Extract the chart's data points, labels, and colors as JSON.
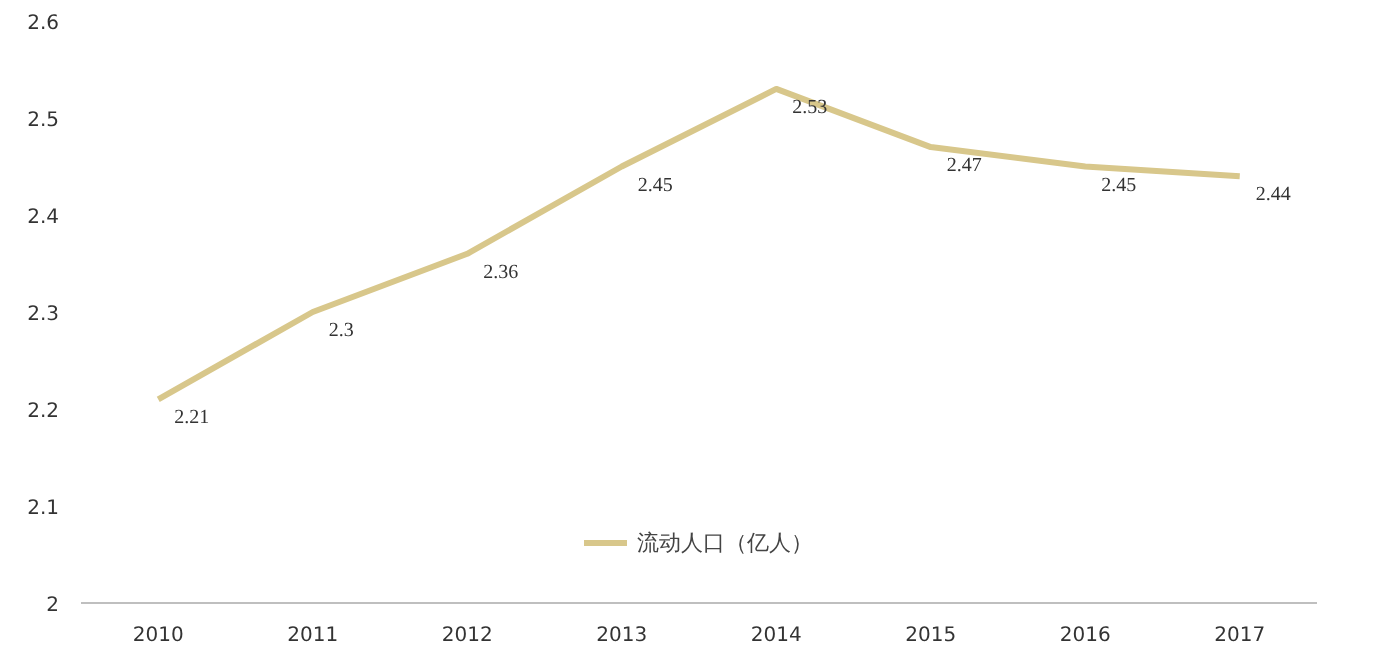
{
  "chart_data": {
    "type": "line",
    "categories": [
      "2010",
      "2011",
      "2012",
      "2013",
      "2014",
      "2015",
      "2016",
      "2017"
    ],
    "series": [
      {
        "name": "流动人口（亿人）",
        "color": "#d8c78b",
        "values": [
          2.21,
          2.3,
          2.36,
          2.45,
          2.53,
          2.47,
          2.45,
          2.44
        ]
      }
    ],
    "ylim": [
      2,
      2.6
    ],
    "yticks": [
      2,
      2.1,
      2.2,
      2.3,
      2.4,
      2.5,
      2.6
    ],
    "grid": false,
    "legend": "bottom",
    "data_labels": true,
    "marker": "none",
    "line_style": "solid"
  }
}
